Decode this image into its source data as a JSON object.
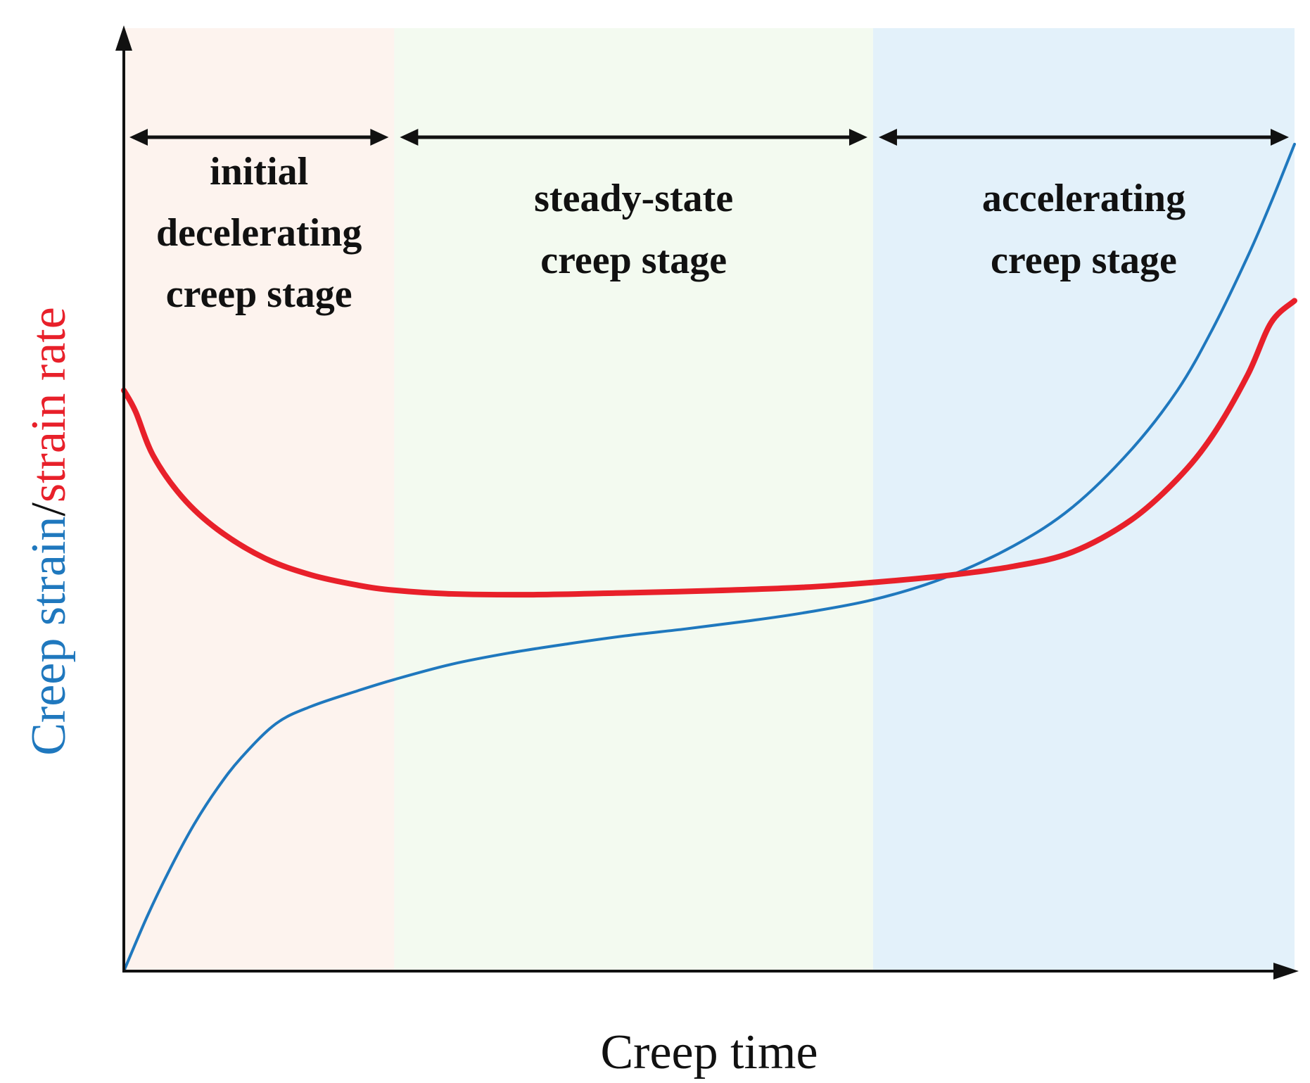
{
  "chart_data": {
    "type": "line",
    "xlabel": "Creep time",
    "ylabel_parts": [
      {
        "text": "Creep strain",
        "color": "#1F78BE"
      },
      {
        "text": "/",
        "color": "#111111"
      },
      {
        "text": "strain rate",
        "color": "#E8202A"
      }
    ],
    "ticks": "none",
    "grid": false,
    "xlim": [
      0,
      1
    ],
    "ylim": [
      0,
      1
    ],
    "stages": [
      {
        "label_lines": [
          "initial",
          "decelerating",
          "creep stage"
        ],
        "x_start": 0.0,
        "x_end": 0.231,
        "fill": "#FDF3EE"
      },
      {
        "label_lines": [
          "steady-state",
          "creep stage"
        ],
        "x_start": 0.231,
        "x_end": 0.64,
        "fill": "#F3FAF0"
      },
      {
        "label_lines": [
          "accelerating",
          "creep stage"
        ],
        "x_start": 0.64,
        "x_end": 1.0,
        "fill": "#E3F1FA"
      }
    ],
    "series": [
      {
        "color": "#1F78BE",
        "role": "creep strain",
        "points": [
          [
            0.0,
            0.0
          ],
          [
            0.02,
            0.062
          ],
          [
            0.04,
            0.117
          ],
          [
            0.06,
            0.166
          ],
          [
            0.08,
            0.207
          ],
          [
            0.1,
            0.241
          ],
          [
            0.13,
            0.28
          ],
          [
            0.16,
            0.2995
          ],
          [
            0.2,
            0.3173
          ],
          [
            0.231,
            0.3299
          ],
          [
            0.28,
            0.3472
          ],
          [
            0.33,
            0.3601
          ],
          [
            0.38,
            0.3704
          ],
          [
            0.43,
            0.3796
          ],
          [
            0.48,
            0.3872
          ],
          [
            0.53,
            0.3956
          ],
          [
            0.58,
            0.4052
          ],
          [
            0.64,
            0.4202
          ],
          [
            0.7,
            0.4445
          ],
          [
            0.76,
            0.4811
          ],
          [
            0.81,
            0.5245
          ],
          [
            0.86,
            0.5891
          ],
          [
            0.9,
            0.6571
          ],
          [
            0.93,
            0.7265
          ],
          [
            0.96,
            0.8085
          ],
          [
            0.98,
            0.8698
          ],
          [
            1.0,
            0.9356
          ]
        ]
      },
      {
        "color": "#E8202A",
        "role": "strain rate",
        "points": [
          [
            0.0,
            0.6571
          ],
          [
            0.01,
            0.6331
          ],
          [
            0.025,
            0.5834
          ],
          [
            0.05,
            0.5361
          ],
          [
            0.08,
            0.4997
          ],
          [
            0.12,
            0.4674
          ],
          [
            0.16,
            0.4482
          ],
          [
            0.2,
            0.4366
          ],
          [
            0.231,
            0.4309
          ],
          [
            0.28,
            0.4268
          ],
          [
            0.35,
            0.4259
          ],
          [
            0.42,
            0.4277
          ],
          [
            0.5,
            0.4303
          ],
          [
            0.58,
            0.4342
          ],
          [
            0.64,
            0.4398
          ],
          [
            0.7,
            0.4471
          ],
          [
            0.76,
            0.458
          ],
          [
            0.81,
            0.474
          ],
          [
            0.86,
            0.51
          ],
          [
            0.9,
            0.5569
          ],
          [
            0.93,
            0.606
          ],
          [
            0.96,
            0.6746
          ],
          [
            0.98,
            0.7337
          ],
          [
            1.0,
            0.7585
          ]
        ]
      }
    ]
  }
}
